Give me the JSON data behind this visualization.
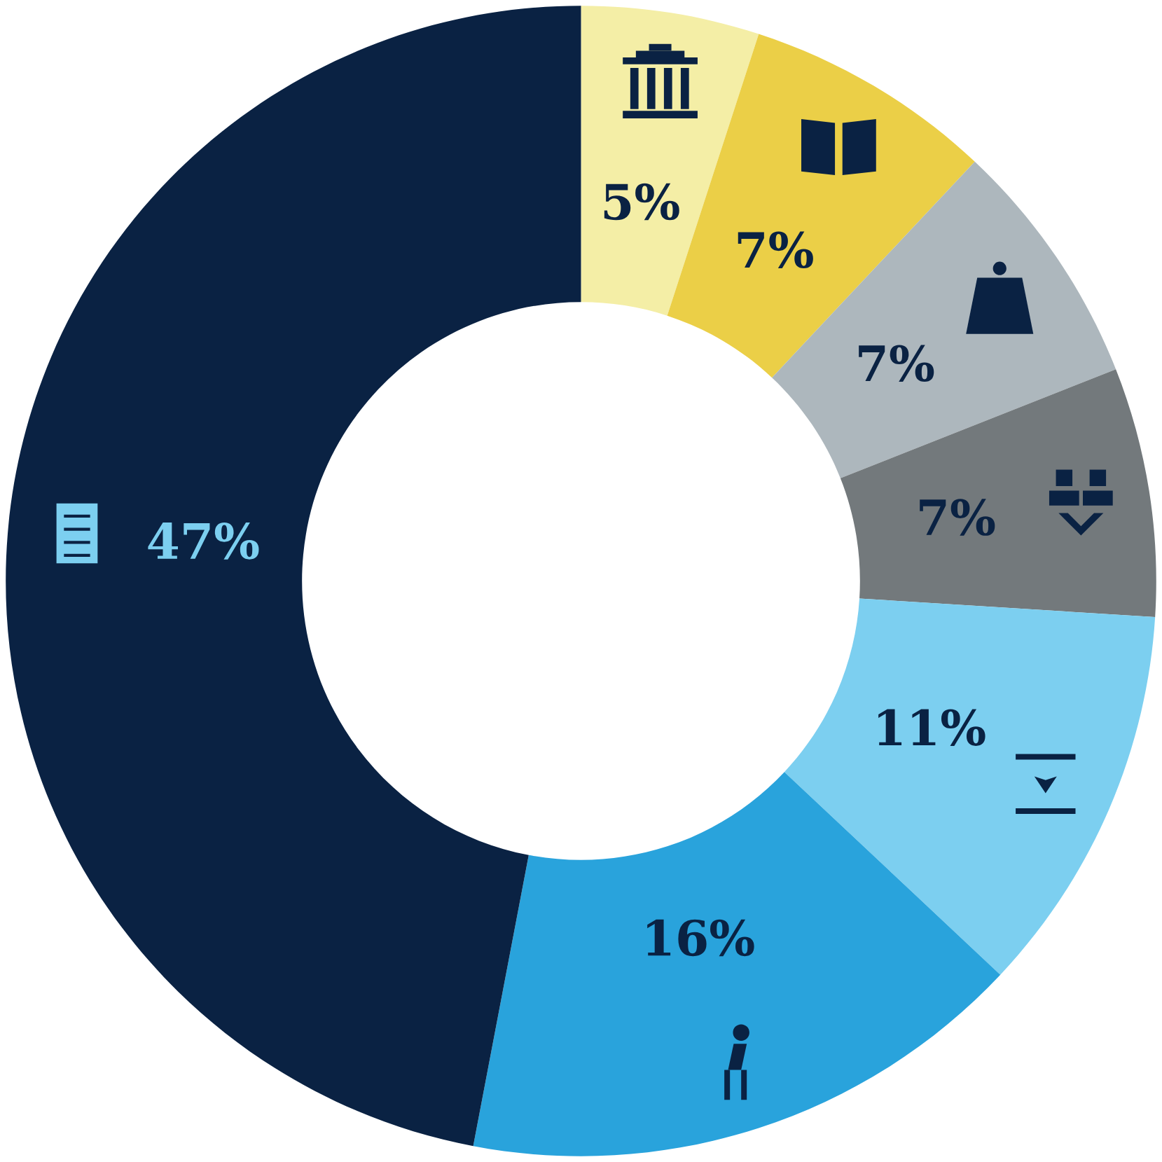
{
  "chart_data": {
    "type": "donut",
    "categories": [
      null,
      null,
      null,
      null,
      null,
      null,
      null
    ],
    "values": [
      5,
      7,
      7,
      7,
      11,
      16,
      47
    ],
    "colors": [
      "#f4eea6",
      "#ebcf47",
      "#adb7bd",
      "#73797c",
      "#7ccff0",
      "#29a3dc",
      "#0a2243"
    ],
    "data_labels": true,
    "value_labels": [
      "5%",
      "7%",
      "7%",
      "7%",
      "11%",
      "16%",
      "47%"
    ]
  }
}
